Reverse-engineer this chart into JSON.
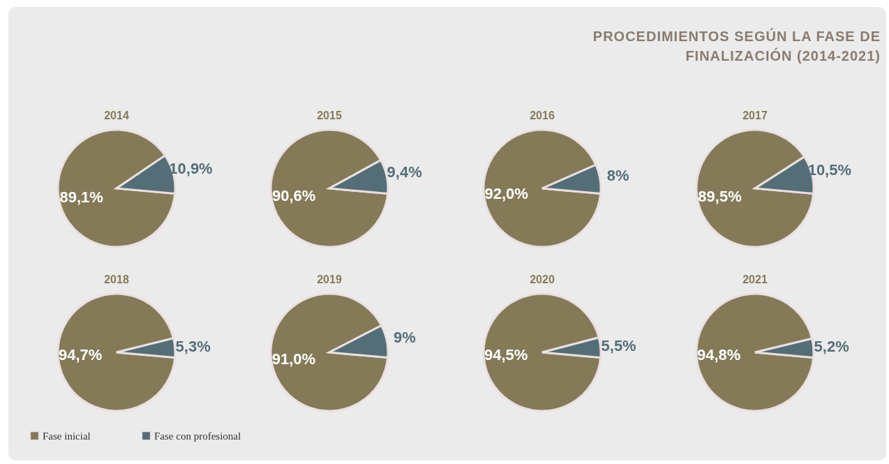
{
  "chart_data": [
    {
      "type": "other",
      "title": "PROCEDIMIENTOS SEGÚN LA FASE DE FINALIZACIÓN (2014-2021)"
    },
    {
      "type": "pie",
      "title": "2014",
      "values": [
        89.1,
        10.9
      ],
      "value_labels": [
        "89,1%",
        "10,9%"
      ],
      "colors": [
        "#857a58",
        "#546e78"
      ]
    },
    {
      "type": "pie",
      "title": "2015",
      "values": [
        90.6,
        9.4
      ],
      "value_labels": [
        "90,6%",
        "9,4%"
      ],
      "colors": [
        "#857a58",
        "#546e78"
      ]
    },
    {
      "type": "pie",
      "title": "2016",
      "values": [
        92.0,
        8
      ],
      "value_labels": [
        "92,0%",
        "8%"
      ],
      "colors": [
        "#857a58",
        "#546e78"
      ]
    },
    {
      "type": "pie",
      "title": "2017",
      "values": [
        89.5,
        10.5
      ],
      "value_labels": [
        "89,5%",
        "10,5%"
      ],
      "colors": [
        "#857a58",
        "#546e78"
      ]
    },
    {
      "type": "pie",
      "title": "2018",
      "categories": [
        "Fase inicial",
        "Fase con profesional"
      ],
      "values": [
        94.7,
        5.3
      ],
      "value_labels": [
        "94,7%",
        "5,3%"
      ],
      "colors": [
        "#857a58",
        "#546e78"
      ],
      "legend": "bottom"
    },
    {
      "type": "pie",
      "title": "2019",
      "values": [
        91.0,
        9
      ],
      "value_labels": [
        "91,0%",
        "9%"
      ],
      "colors": [
        "#857a58",
        "#546e78"
      ]
    },
    {
      "type": "pie",
      "title": "2020",
      "values": [
        94.5,
        5.5
      ],
      "value_labels": [
        "94,5%",
        "5,5%"
      ],
      "colors": [
        "#857a58",
        "#546e78"
      ]
    },
    {
      "type": "pie",
      "title": "2021",
      "values": [
        94.8,
        5.2
      ],
      "value_labels": [
        "94,8%",
        "5,2%"
      ],
      "colors": [
        "#857a58",
        "#546e78"
      ]
    }
  ]
}
